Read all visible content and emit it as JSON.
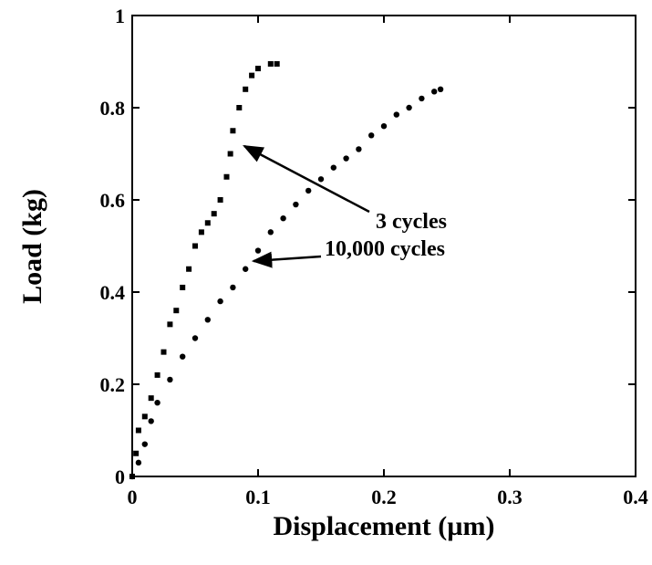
{
  "chart_data": {
    "type": "scatter",
    "xlabel": "Displacement (µm)",
    "ylabel": "Load (kg)",
    "xlim": [
      0,
      0.4
    ],
    "ylim": [
      0,
      1
    ],
    "xticks": [
      0,
      0.1,
      0.2,
      0.3,
      0.4
    ],
    "yticks": [
      0,
      0.2,
      0.4,
      0.6,
      0.8,
      1
    ],
    "grid": false,
    "series": [
      {
        "name": "3 cycles",
        "color": "#000000",
        "marker": "square",
        "x": [
          0,
          0.003,
          0.005,
          0.01,
          0.015,
          0.02,
          0.025,
          0.03,
          0.035,
          0.04,
          0.045,
          0.05,
          0.055,
          0.06,
          0.065,
          0.07,
          0.075,
          0.078,
          0.08,
          0.085,
          0.09,
          0.095,
          0.1,
          0.11,
          0.115
        ],
        "values": [
          0,
          0.05,
          0.1,
          0.13,
          0.17,
          0.22,
          0.27,
          0.33,
          0.36,
          0.41,
          0.45,
          0.5,
          0.53,
          0.55,
          0.57,
          0.6,
          0.65,
          0.7,
          0.75,
          0.8,
          0.84,
          0.87,
          0.885,
          0.895,
          0.895
        ]
      },
      {
        "name": "10,000 cycles",
        "color": "#000000",
        "marker": "circle",
        "x": [
          0,
          0.005,
          0.01,
          0.015,
          0.02,
          0.03,
          0.04,
          0.05,
          0.06,
          0.07,
          0.08,
          0.09,
          0.1,
          0.11,
          0.12,
          0.13,
          0.14,
          0.15,
          0.16,
          0.17,
          0.18,
          0.19,
          0.2,
          0.21,
          0.22,
          0.23,
          0.24,
          0.245
        ],
        "values": [
          0,
          0.03,
          0.07,
          0.12,
          0.16,
          0.21,
          0.26,
          0.3,
          0.34,
          0.38,
          0.41,
          0.45,
          0.49,
          0.53,
          0.56,
          0.59,
          0.62,
          0.645,
          0.67,
          0.69,
          0.71,
          0.74,
          0.76,
          0.785,
          0.8,
          0.82,
          0.835,
          0.84
        ]
      }
    ]
  }
}
